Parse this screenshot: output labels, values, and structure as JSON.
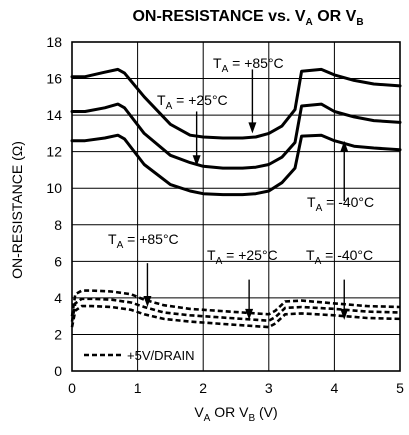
{
  "chart_data": {
    "type": "line",
    "title_main": "ON-RESISTANCE vs. V",
    "title_sub1": "A",
    "title_mid": " OR V",
    "title_sub2": "B",
    "xlabel_main1": "V",
    "xlabel_sub1": "A",
    "xlabel_mid": " OR V",
    "xlabel_sub2": "B",
    "xlabel_tail": " (V)",
    "ylabel": "ON-RESISTANCE (Ω)",
    "xlim": [
      0,
      5
    ],
    "ylim": [
      0,
      18
    ],
    "xticks": [
      "0",
      "1",
      "2",
      "3",
      "4",
      "5"
    ],
    "yticks": [
      "0",
      "2",
      "4",
      "6",
      "8",
      "10",
      "12",
      "14",
      "16",
      "18"
    ],
    "grid": true,
    "series": [
      {
        "name": "T_A = +85°C",
        "style": "solid",
        "x": [
          0,
          0.2,
          0.5,
          0.7,
          0.8,
          1.1,
          1.5,
          1.8,
          2.0,
          2.3,
          2.6,
          2.8,
          3.0,
          3.2,
          3.4,
          3.5,
          3.8,
          4.0,
          4.3,
          4.6,
          5.0
        ],
        "y": [
          16.1,
          16.1,
          16.35,
          16.5,
          16.3,
          15.0,
          13.5,
          12.9,
          12.8,
          12.75,
          12.75,
          12.8,
          13.0,
          13.4,
          14.3,
          16.4,
          16.5,
          16.2,
          15.9,
          15.7,
          15.6
        ]
      },
      {
        "name": "T_A = +25°C",
        "style": "solid",
        "x": [
          0,
          0.2,
          0.5,
          0.7,
          0.8,
          1.1,
          1.5,
          1.8,
          2.0,
          2.3,
          2.6,
          2.8,
          3.0,
          3.2,
          3.4,
          3.5,
          3.8,
          4.0,
          4.3,
          4.6,
          5.0
        ],
        "y": [
          14.2,
          14.2,
          14.4,
          14.6,
          14.4,
          13.0,
          11.8,
          11.4,
          11.2,
          11.1,
          11.1,
          11.15,
          11.3,
          11.7,
          12.5,
          14.5,
          14.6,
          14.2,
          13.9,
          13.7,
          13.6
        ]
      },
      {
        "name": "T_A = -40°C",
        "style": "solid",
        "x": [
          0,
          0.2,
          0.5,
          0.7,
          0.8,
          1.1,
          1.5,
          1.8,
          2.0,
          2.3,
          2.6,
          2.8,
          3.0,
          3.2,
          3.4,
          3.5,
          3.8,
          4.0,
          4.3,
          4.6,
          5.0
        ],
        "y": [
          12.6,
          12.6,
          12.75,
          12.9,
          12.7,
          11.3,
          10.2,
          9.85,
          9.7,
          9.65,
          9.65,
          9.7,
          9.85,
          10.3,
          11.1,
          12.85,
          12.9,
          12.6,
          12.3,
          12.2,
          12.1
        ]
      },
      {
        "name": "+5V/DRAIN T_A = +85°C",
        "style": "dashed",
        "x": [
          0,
          0.05,
          0.15,
          0.3,
          0.6,
          0.9,
          1.1,
          1.4,
          1.8,
          2.2,
          2.6,
          3.0,
          3.1,
          3.25,
          3.5,
          4.0,
          4.5,
          5.0
        ],
        "y": [
          3.0,
          4.2,
          4.4,
          4.4,
          4.35,
          4.2,
          3.9,
          3.6,
          3.4,
          3.3,
          3.2,
          3.1,
          3.3,
          3.8,
          3.85,
          3.7,
          3.55,
          3.5
        ]
      },
      {
        "name": "+5V/DRAIN T_A = +25°C",
        "style": "dashed",
        "x": [
          0,
          0.05,
          0.15,
          0.3,
          0.6,
          0.9,
          1.1,
          1.4,
          1.8,
          2.2,
          2.6,
          3.0,
          3.1,
          3.25,
          3.5,
          4.0,
          4.5,
          5.0
        ],
        "y": [
          2.7,
          3.7,
          3.95,
          3.95,
          3.9,
          3.75,
          3.5,
          3.2,
          3.05,
          2.95,
          2.85,
          2.75,
          2.95,
          3.45,
          3.5,
          3.4,
          3.25,
          3.2
        ]
      },
      {
        "name": "+5V/DRAIN T_A = -40°C",
        "style": "dashed",
        "x": [
          0,
          0.05,
          0.15,
          0.3,
          0.6,
          0.9,
          1.1,
          1.4,
          1.8,
          2.2,
          2.6,
          3.0,
          3.1,
          3.25,
          3.5,
          4.0,
          4.5,
          5.0
        ],
        "y": [
          2.4,
          3.3,
          3.55,
          3.55,
          3.5,
          3.35,
          3.1,
          2.85,
          2.7,
          2.6,
          2.5,
          2.4,
          2.6,
          3.1,
          3.15,
          3.05,
          2.9,
          2.85
        ]
      }
    ],
    "annotations": [
      {
        "pre": "T",
        "sub": "A",
        "post": " = +85°C"
      },
      {
        "pre": "T",
        "sub": "A",
        "post": " = +25°C"
      },
      {
        "pre": "T",
        "sub": "A",
        "post": " = -40°C"
      },
      {
        "pre": "T",
        "sub": "A",
        "post": " = +85°C"
      },
      {
        "pre": "T",
        "sub": "A",
        "post": " = +25°C"
      },
      {
        "pre": "T",
        "sub": "A",
        "post": " = -40°C"
      }
    ],
    "arrows": [
      {
        "x": 2.75,
        "y_from": 16.5,
        "y_to": 13.0
      },
      {
        "x": 1.9,
        "y_from": 14.2,
        "y_to": 11.2
      },
      {
        "x": 4.15,
        "y_from": 9.3,
        "y_to": 12.6
      },
      {
        "x": 1.15,
        "y_from": 5.9,
        "y_to": 3.5
      },
      {
        "x": 2.7,
        "y_from": 5.0,
        "y_to": 2.8
      },
      {
        "x": 4.15,
        "y_from": 5.0,
        "y_to": 2.8
      }
    ],
    "legend": {
      "label": "+5V/DRAIN",
      "style": "dashed",
      "position": "bottom-left"
    }
  }
}
